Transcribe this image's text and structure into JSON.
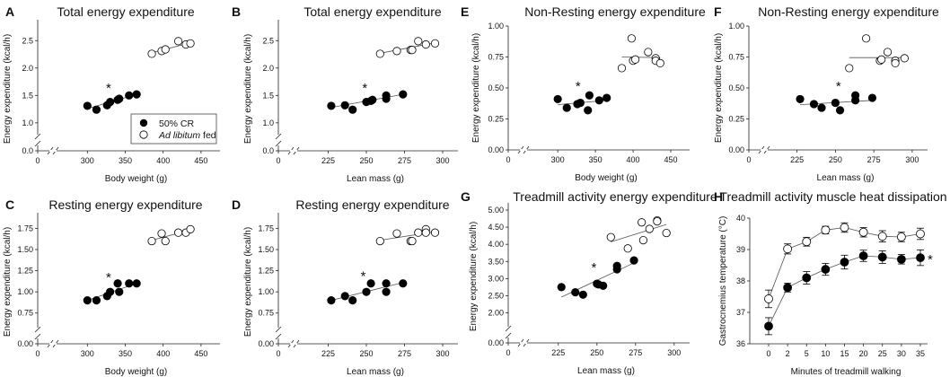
{
  "figure": {
    "legend": {
      "entries": [
        {
          "label": "50% CR",
          "marker": "filled-circle"
        },
        {
          "label_italic": "Ad libitum",
          "label_rest": " fed",
          "marker": "open-circle"
        }
      ]
    },
    "significance_marker": "*",
    "colors": {
      "cr": "#000000",
      "al": "#ffffff",
      "stroke": "#000000",
      "axis": "#222222",
      "fit": "#555555"
    }
  },
  "chart_data": [
    {
      "id": "A",
      "panel_label": "A",
      "type": "scatter",
      "title": "Total energy expenditure",
      "xlabel": "Body weight (g)",
      "ylabel": "Energy expenditure (kcal/h)",
      "xticks": [
        "0",
        "300",
        "350",
        "400",
        "450"
      ],
      "xtick_values": [
        0,
        300,
        350,
        400,
        450
      ],
      "yticks": [
        "0.0",
        "1.0",
        "1.5",
        "2.0",
        "2.5"
      ],
      "ytick_values": [
        0,
        1.0,
        1.5,
        2.0,
        2.5
      ],
      "xbreak": true,
      "ybreak": true,
      "xlim": [
        270,
        475
      ],
      "ylim": [
        0.85,
        2.75
      ],
      "series": [
        {
          "name": "50% CR",
          "x": [
            300,
            312,
            326,
            330,
            340,
            342,
            355,
            365
          ],
          "y": [
            1.31,
            1.24,
            1.32,
            1.38,
            1.42,
            1.44,
            1.5,
            1.52
          ],
          "fit": [
            [
              300,
              1.26
            ],
            [
              365,
              1.52
            ]
          ]
        },
        {
          "name": "Ad libitum fed",
          "x": [
            385,
            398,
            403,
            420,
            430,
            436
          ],
          "y": [
            2.26,
            2.31,
            2.34,
            2.49,
            2.43,
            2.45
          ],
          "fit": [
            [
              385,
              2.28
            ],
            [
              436,
              2.46
            ]
          ]
        }
      ],
      "annotations": [
        {
          "text": "*",
          "x": 328,
          "y": 1.65
        }
      ],
      "legend": "lower-right"
    },
    {
      "id": "B",
      "panel_label": "B",
      "type": "scatter",
      "title": "Total energy expenditure",
      "xlabel": "Lean mass (g)",
      "ylabel": "Energy expenditure (kcal/h)",
      "xticks": [
        "0",
        "225",
        "250",
        "275",
        "300"
      ],
      "xtick_values": [
        0,
        225,
        250,
        275,
        300
      ],
      "yticks": [
        "0.0",
        "1.0",
        "1.5",
        "2.0",
        "2.5"
      ],
      "ytick_values": [
        0,
        1.0,
        1.5,
        2.0,
        2.5
      ],
      "xbreak": true,
      "ybreak": true,
      "xlim": [
        210,
        310
      ],
      "ylim": [
        0.85,
        2.75
      ],
      "series": [
        {
          "name": "50% CR",
          "x": [
            227,
            236,
            241,
            250,
            253,
            254,
            263,
            263,
            274
          ],
          "y": [
            1.31,
            1.32,
            1.24,
            1.38,
            1.4,
            1.42,
            1.5,
            1.44,
            1.52
          ],
          "fit": [
            [
              227,
              1.28
            ],
            [
              274,
              1.52
            ]
          ]
        },
        {
          "name": "Ad libitum fed",
          "x": [
            259,
            270,
            279,
            280,
            284,
            289,
            295
          ],
          "y": [
            2.26,
            2.31,
            2.33,
            2.33,
            2.49,
            2.43,
            2.45
          ],
          "fit": [
            [
              259,
              2.27
            ],
            [
              295,
              2.46
            ]
          ]
        }
      ],
      "annotations": [
        {
          "text": "*",
          "x": 249,
          "y": 1.65
        }
      ]
    },
    {
      "id": "C",
      "panel_label": "C",
      "type": "scatter",
      "title": "Resting energy expenditure",
      "xlabel": "Body weight (g)",
      "ylabel": "Energy expenditure (kcal/h)",
      "xticks": [
        "0",
        "300",
        "350",
        "400",
        "450"
      ],
      "xtick_values": [
        0,
        300,
        350,
        400,
        450
      ],
      "yticks": [
        "0.00",
        "0.75",
        "1.00",
        "1.25",
        "1.50",
        "1.75"
      ],
      "ytick_values": [
        0,
        0.75,
        1.0,
        1.25,
        1.5,
        1.75
      ],
      "xbreak": true,
      "ybreak": true,
      "xlim": [
        270,
        475
      ],
      "ylim": [
        0.62,
        1.85
      ],
      "series": [
        {
          "name": "50% CR",
          "x": [
            300,
            312,
            326,
            330,
            340,
            342,
            355,
            365
          ],
          "y": [
            0.9,
            0.9,
            0.95,
            1.0,
            1.1,
            1.0,
            1.1,
            1.1
          ],
          "fit": [
            [
              300,
              0.9
            ],
            [
              365,
              1.1
            ]
          ]
        },
        {
          "name": "Ad libitum fed",
          "x": [
            385,
            398,
            403,
            420,
            430,
            436
          ],
          "y": [
            1.6,
            1.69,
            1.6,
            1.7,
            1.7,
            1.74
          ],
          "fit": [
            [
              385,
              1.61
            ],
            [
              436,
              1.73
            ]
          ]
        }
      ],
      "annotations": [
        {
          "text": "*",
          "x": 328,
          "y": 1.18
        }
      ]
    },
    {
      "id": "D",
      "panel_label": "D",
      "type": "scatter",
      "title": "Resting energy expenditure",
      "xlabel": "Lean mass (g)",
      "ylabel": "Energy expenditure (kcal/h)",
      "xticks": [
        "0",
        "225",
        "250",
        "275",
        "300"
      ],
      "xtick_values": [
        0,
        225,
        250,
        275,
        300
      ],
      "yticks": [
        "0.00",
        "0.75",
        "1.00",
        "1.25",
        "1.50",
        "1.75"
      ],
      "ytick_values": [
        0,
        0.75,
        1.0,
        1.25,
        1.5,
        1.75
      ],
      "xbreak": true,
      "ybreak": true,
      "xlim": [
        210,
        310
      ],
      "ylim": [
        0.62,
        1.85
      ],
      "series": [
        {
          "name": "50% CR",
          "x": [
            227,
            236,
            241,
            250,
            253,
            263,
            263,
            274
          ],
          "y": [
            0.9,
            0.95,
            0.9,
            1.0,
            1.1,
            1.1,
            1.0,
            1.1
          ],
          "fit": [
            [
              227,
              0.9
            ],
            [
              274,
              1.11
            ]
          ]
        },
        {
          "name": "Ad libitum fed",
          "x": [
            259,
            270,
            279,
            280,
            284,
            289,
            289,
            295
          ],
          "y": [
            1.6,
            1.69,
            1.6,
            1.6,
            1.7,
            1.74,
            1.7,
            1.7
          ],
          "fit": [
            [
              259,
              1.61
            ],
            [
              295,
              1.71
            ]
          ]
        }
      ],
      "annotations": [
        {
          "text": "*",
          "x": 248,
          "y": 1.2
        }
      ]
    },
    {
      "id": "E",
      "panel_label": "E",
      "type": "scatter",
      "title": "Non-Resting energy expenditure",
      "xlabel": "Body weight (g)",
      "ylabel": "Energy expenditure (kcal/h)",
      "xticks": [
        "0",
        "300",
        "350",
        "400",
        "450"
      ],
      "xtick_values": [
        0,
        300,
        350,
        400,
        450
      ],
      "yticks": [
        "0.00",
        "0.25",
        "0.50",
        "0.75",
        "1.00"
      ],
      "ytick_values": [
        0,
        0.25,
        0.5,
        0.75,
        1.0
      ],
      "xbreak": true,
      "ybreak": false,
      "xlim": [
        270,
        475
      ],
      "ylim": [
        0,
        1.0
      ],
      "series": [
        {
          "name": "50% CR",
          "x": [
            300,
            312,
            326,
            330,
            340,
            342,
            355,
            365
          ],
          "y": [
            0.41,
            0.34,
            0.37,
            0.38,
            0.32,
            0.44,
            0.4,
            0.42
          ],
          "fit": [
            [
              300,
              0.365
            ],
            [
              365,
              0.4
            ]
          ]
        },
        {
          "name": "Ad libitum fed",
          "x": [
            385,
            398,
            400,
            403,
            420,
            430,
            430,
            436
          ],
          "y": [
            0.66,
            0.9,
            0.72,
            0.73,
            0.79,
            0.74,
            0.72,
            0.7
          ],
          "fit": [
            [
              385,
              0.75
            ],
            [
              436,
              0.745
            ]
          ]
        }
      ],
      "annotations": [
        {
          "text": "*",
          "x": 327,
          "y": 0.52
        }
      ]
    },
    {
      "id": "F",
      "panel_label": "F",
      "type": "scatter",
      "title": "Non-Resting energy expenditure",
      "xlabel": "Lean mass (g)",
      "ylabel": "Energy expenditure (kcal/h)",
      "xticks": [
        "0",
        "225",
        "250",
        "275",
        "300"
      ],
      "xtick_values": [
        0,
        225,
        250,
        275,
        300
      ],
      "yticks": [
        "0.00",
        "0.25",
        "0.50",
        "0.75",
        "1.00"
      ],
      "ytick_values": [
        0,
        0.25,
        0.5,
        0.75,
        1.0
      ],
      "xbreak": true,
      "ybreak": false,
      "xlim": [
        210,
        310
      ],
      "ylim": [
        0,
        1.0
      ],
      "series": [
        {
          "name": "50% CR",
          "x": [
            227,
            236,
            241,
            250,
            253,
            263,
            263,
            274
          ],
          "y": [
            0.41,
            0.37,
            0.34,
            0.38,
            0.32,
            0.44,
            0.4,
            0.42
          ],
          "fit": [
            [
              227,
              0.365
            ],
            [
              274,
              0.4
            ]
          ]
        },
        {
          "name": "Ad libitum fed",
          "x": [
            259,
            270,
            279,
            280,
            284,
            289,
            289,
            295
          ],
          "y": [
            0.66,
            0.9,
            0.72,
            0.73,
            0.79,
            0.72,
            0.7,
            0.74
          ],
          "fit": [
            [
              259,
              0.745
            ],
            [
              295,
              0.745
            ]
          ]
        }
      ],
      "annotations": [
        {
          "text": "*",
          "x": 252,
          "y": 0.52
        }
      ]
    },
    {
      "id": "G",
      "panel_label": "G",
      "type": "scatter",
      "title": "Treadmill activity energy expenditure",
      "xlabel": "Lean mass (g)",
      "ylabel": "Energy expenditure (kcal/h)",
      "xticks": [
        "0",
        "225",
        "250",
        "275",
        "300"
      ],
      "xtick_values": [
        0,
        225,
        250,
        275,
        300
      ],
      "yticks": [
        "0.00",
        "2.00",
        "2.50",
        "3.00",
        "3.50",
        "4.00",
        "4.50",
        "5.00"
      ],
      "ytick_values": [
        0,
        2.0,
        2.5,
        3.0,
        3.5,
        4.0,
        4.5,
        5.0
      ],
      "xbreak": true,
      "ybreak": true,
      "xlim": [
        210,
        310
      ],
      "ylim": [
        1.7,
        5.0
      ],
      "series": [
        {
          "name": "50% CR",
          "x": [
            227,
            236,
            241,
            250,
            251,
            254,
            263,
            263,
            274
          ],
          "y": [
            2.75,
            2.6,
            2.53,
            2.85,
            2.83,
            2.79,
            3.37,
            3.27,
            3.53
          ],
          "fit": [
            [
              227,
              2.46
            ],
            [
              274,
              3.46
            ]
          ]
        },
        {
          "name": "Ad libitum fed",
          "x": [
            259,
            270,
            279,
            280,
            284,
            289,
            289,
            295
          ],
          "y": [
            4.21,
            3.88,
            4.64,
            4.12,
            4.45,
            4.7,
            4.67,
            4.33
          ],
          "fit": [
            [
              259,
              4.07
            ],
            [
              295,
              4.58
            ]
          ]
        }
      ],
      "annotations": [
        {
          "text": "*",
          "x": 248,
          "y": 3.35
        }
      ]
    },
    {
      "id": "H",
      "panel_label": "H",
      "type": "line",
      "title": "Treadmill activity muscle heat dissipation",
      "xlabel": "Minutes of treadmill walking",
      "ylabel": "Gastrocnemius temperature (°C)",
      "categories": [
        "0",
        "2",
        "5",
        "10",
        "15",
        "20",
        "25",
        "30",
        "35"
      ],
      "yticks": [
        "36",
        "37",
        "38",
        "39",
        "40"
      ],
      "ytick_values": [
        36,
        37,
        38,
        39,
        40
      ],
      "ylim": [
        36,
        40
      ],
      "series": [
        {
          "name": "Ad libitum fed",
          "values": [
            37.43,
            39.02,
            39.25,
            39.62,
            39.7,
            39.55,
            39.42,
            39.4,
            39.5
          ],
          "errors": [
            0.28,
            0.16,
            0.14,
            0.12,
            0.15,
            0.15,
            0.18,
            0.15,
            0.18
          ]
        },
        {
          "name": "50% CR",
          "values": [
            36.56,
            37.79,
            38.1,
            38.37,
            38.6,
            38.8,
            38.76,
            38.69,
            38.74
          ],
          "errors": [
            0.27,
            0.14,
            0.2,
            0.19,
            0.22,
            0.18,
            0.2,
            0.15,
            0.25
          ]
        }
      ],
      "annotations": [
        {
          "text": "*",
          "at_category": "35",
          "series": "50% CR"
        }
      ]
    }
  ]
}
